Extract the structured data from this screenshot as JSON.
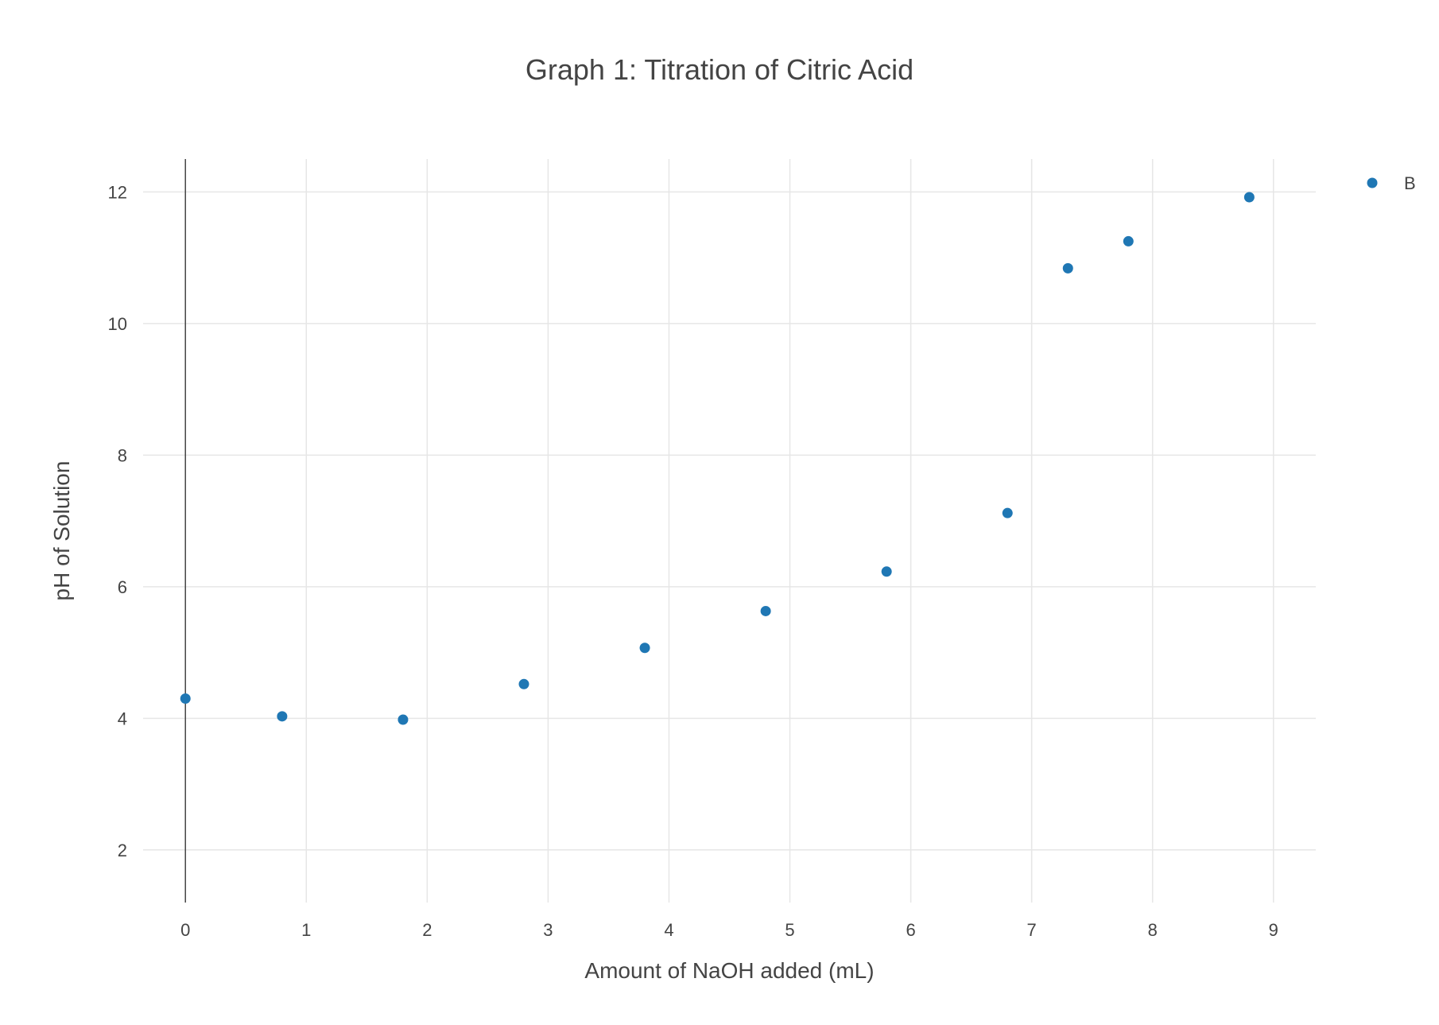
{
  "chart_data": {
    "type": "scatter",
    "title": "Graph 1: Titration of Citric Acid",
    "xlabel": "Amount of NaOH added (mL)",
    "ylabel": "pH of Solution",
    "xlim": [
      -0.35,
      9.35
    ],
    "ylim": [
      1.2,
      12.5
    ],
    "xticks": [
      0,
      1,
      2,
      3,
      4,
      5,
      6,
      7,
      8,
      9
    ],
    "yticks": [
      2,
      4,
      6,
      8,
      10,
      12
    ],
    "grid": true,
    "legend_position": "top-right",
    "series": [
      {
        "name": "B",
        "color": "#1f77b4",
        "marker": "circle",
        "x": [
          0,
          0.8,
          1.8,
          2.8,
          3.8,
          4.8,
          5.8,
          6.8,
          7.3,
          7.8,
          8.8
        ],
        "y": [
          4.3,
          4.03,
          3.98,
          4.52,
          5.07,
          5.63,
          6.23,
          7.12,
          10.84,
          11.25,
          11.92
        ]
      }
    ]
  }
}
